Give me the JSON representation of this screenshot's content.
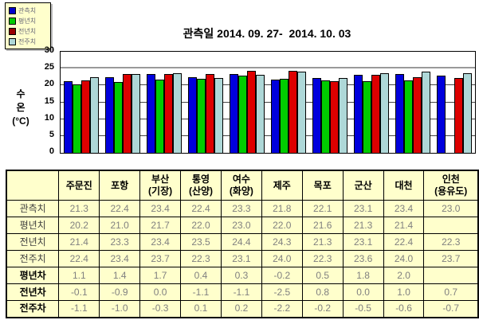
{
  "legend": {
    "items": [
      {
        "label": "관측치",
        "color": "#0000CC"
      },
      {
        "label": "평년치",
        "color": "#00CC00"
      },
      {
        "label": "전년치",
        "color": "#990000"
      },
      {
        "label": "전주치",
        "color": "#AED8D8"
      }
    ]
  },
  "chart": {
    "title": "관측일 2014. 09. 27-  2014. 10. 03",
    "y_axis_label": [
      "수",
      "온",
      "(°C)"
    ],
    "y_ticks": [
      0,
      5,
      10,
      15,
      20,
      25,
      30
    ]
  },
  "chart_data": {
    "type": "bar",
    "title": "관측일 2014. 09. 27-  2014. 10. 03",
    "xlabel": "",
    "ylabel": "수온(°C)",
    "ylim": [
      0,
      30
    ],
    "grid": true,
    "legend_position": "top-left",
    "categories": [
      "주문진",
      "포항",
      "부산(기장)",
      "통영(산양)",
      "여수(화양)",
      "제주",
      "목포",
      "군산",
      "대천",
      "인천(용유도)"
    ],
    "series": [
      {
        "name": "관측치",
        "color": "#0000DD",
        "values": [
          21.3,
          22.4,
          23.4,
          22.4,
          23.3,
          21.8,
          22.1,
          23.1,
          23.4,
          23.0
        ]
      },
      {
        "name": "평년치",
        "color": "#00CC00",
        "values": [
          20.2,
          21.0,
          21.7,
          22.0,
          23.0,
          22.0,
          21.6,
          21.3,
          21.4,
          null
        ]
      },
      {
        "name": "전년치",
        "color": "#DD0000",
        "values": [
          21.4,
          23.3,
          23.4,
          23.5,
          24.4,
          24.3,
          21.3,
          23.1,
          22.4,
          22.3
        ]
      },
      {
        "name": "전주치",
        "color": "#AED8D8",
        "values": [
          22.4,
          23.4,
          23.7,
          22.3,
          23.1,
          24.0,
          22.3,
          23.6,
          24.0,
          23.7
        ]
      }
    ]
  },
  "table": {
    "column_headers": [
      "",
      "주문진",
      "포항",
      "부산\n(기장)",
      "통영\n(산양)",
      "여수\n(화양)",
      "제주",
      "목포",
      "군산",
      "대천",
      "인천\n(용유도)"
    ],
    "rows": [
      {
        "label": "관측치",
        "bold": false,
        "values": [
          "21.3",
          "22.4",
          "23.4",
          "22.4",
          "23.3",
          "21.8",
          "22.1",
          "23.1",
          "23.4",
          "23.0"
        ]
      },
      {
        "label": "평년치",
        "bold": false,
        "values": [
          "20.2",
          "21.0",
          "21.7",
          "22.0",
          "23.0",
          "22.0",
          "21.6",
          "21.3",
          "21.4",
          ""
        ]
      },
      {
        "label": "전년치",
        "bold": false,
        "values": [
          "21.4",
          "23.3",
          "23.4",
          "23.5",
          "24.4",
          "24.3",
          "21.3",
          "23.1",
          "22.4",
          "22.3"
        ]
      },
      {
        "label": "전주치",
        "bold": false,
        "values": [
          "22.4",
          "23.4",
          "23.7",
          "22.3",
          "23.1",
          "24.0",
          "22.3",
          "23.6",
          "24.0",
          "23.7"
        ]
      },
      {
        "label": "평년차",
        "bold": true,
        "values": [
          "1.1",
          "1.4",
          "1.7",
          "0.4",
          "0.3",
          "-0.2",
          "0.5",
          "1.8",
          "2.0",
          ""
        ]
      },
      {
        "label": "전년차",
        "bold": true,
        "values": [
          "-0.1",
          "-0.9",
          "0.0",
          "-1.1",
          "-1.1",
          "-2.5",
          "0.8",
          "0.0",
          "1.0",
          "0.7"
        ]
      },
      {
        "label": "전주차",
        "bold": true,
        "values": [
          "-1.1",
          "-1.0",
          "-0.3",
          "0.1",
          "0.2",
          "-2.2",
          "-0.2",
          "-0.5",
          "-0.6",
          "-0.7"
        ]
      }
    ]
  }
}
